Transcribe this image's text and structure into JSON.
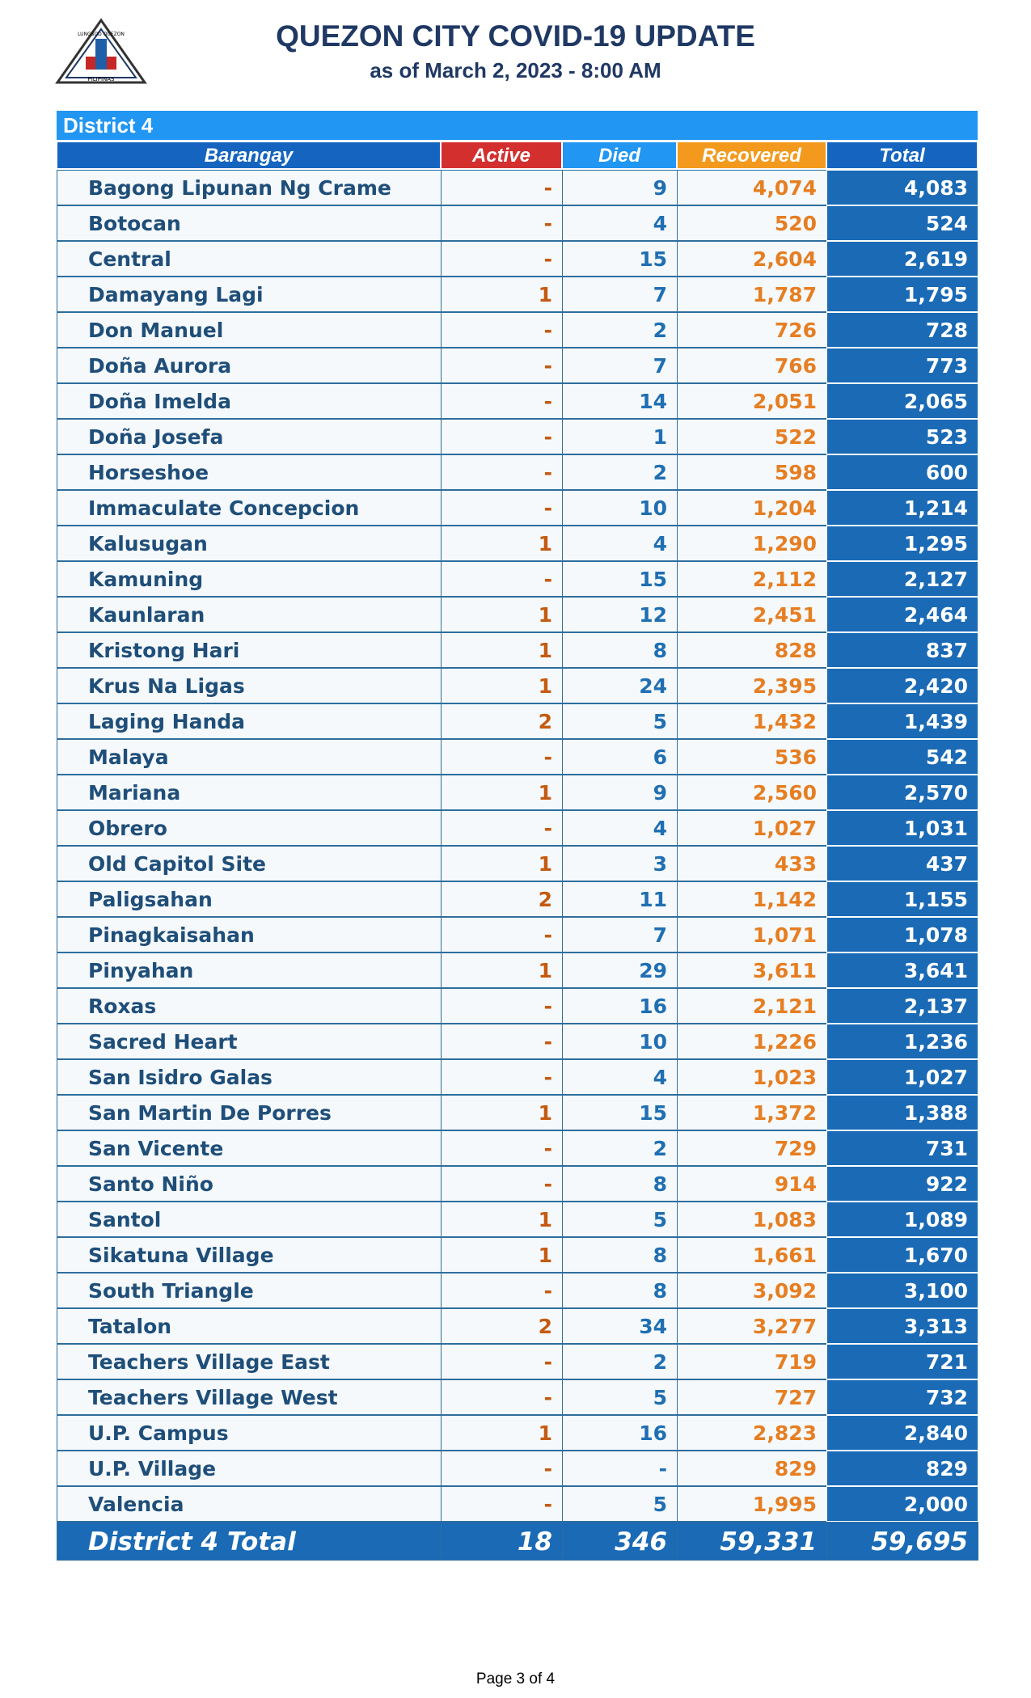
{
  "header": {
    "title": "QUEZON CITY COVID-19 UPDATE",
    "subtitle": "as of March 2, 2023 - 8:00 AM",
    "logo": {
      "top": "LUNGSOD QUEZON",
      "bottom": "PILIPINAS"
    }
  },
  "table": {
    "district": "District 4",
    "columns": [
      "Barangay",
      "Active",
      "Died",
      "Recovered",
      "Total"
    ],
    "rows": [
      [
        "Bagong Lipunan Ng Crame",
        "-",
        "9",
        "4,074",
        "4,083"
      ],
      [
        "Botocan",
        "-",
        "4",
        "520",
        "524"
      ],
      [
        "Central",
        "-",
        "15",
        "2,604",
        "2,619"
      ],
      [
        "Damayang Lagi",
        "1",
        "7",
        "1,787",
        "1,795"
      ],
      [
        "Don Manuel",
        "-",
        "2",
        "726",
        "728"
      ],
      [
        "Doña Aurora",
        "-",
        "7",
        "766",
        "773"
      ],
      [
        "Doña Imelda",
        "-",
        "14",
        "2,051",
        "2,065"
      ],
      [
        "Doña Josefa",
        "-",
        "1",
        "522",
        "523"
      ],
      [
        "Horseshoe",
        "-",
        "2",
        "598",
        "600"
      ],
      [
        "Immaculate Concepcion",
        "-",
        "10",
        "1,204",
        "1,214"
      ],
      [
        "Kalusugan",
        "1",
        "4",
        "1,290",
        "1,295"
      ],
      [
        "Kamuning",
        "-",
        "15",
        "2,112",
        "2,127"
      ],
      [
        "Kaunlaran",
        "1",
        "12",
        "2,451",
        "2,464"
      ],
      [
        "Kristong Hari",
        "1",
        "8",
        "828",
        "837"
      ],
      [
        "Krus Na Ligas",
        "1",
        "24",
        "2,395",
        "2,420"
      ],
      [
        "Laging Handa",
        "2",
        "5",
        "1,432",
        "1,439"
      ],
      [
        "Malaya",
        "-",
        "6",
        "536",
        "542"
      ],
      [
        "Mariana",
        "1",
        "9",
        "2,560",
        "2,570"
      ],
      [
        "Obrero",
        "-",
        "4",
        "1,027",
        "1,031"
      ],
      [
        "Old Capitol Site",
        "1",
        "3",
        "433",
        "437"
      ],
      [
        "Paligsahan",
        "2",
        "11",
        "1,142",
        "1,155"
      ],
      [
        "Pinagkaisahan",
        "-",
        "7",
        "1,071",
        "1,078"
      ],
      [
        "Pinyahan",
        "1",
        "29",
        "3,611",
        "3,641"
      ],
      [
        "Roxas",
        "-",
        "16",
        "2,121",
        "2,137"
      ],
      [
        "Sacred Heart",
        "-",
        "10",
        "1,226",
        "1,236"
      ],
      [
        "San Isidro Galas",
        "-",
        "4",
        "1,023",
        "1,027"
      ],
      [
        "San Martin De Porres",
        "1",
        "15",
        "1,372",
        "1,388"
      ],
      [
        "San Vicente",
        "-",
        "2",
        "729",
        "731"
      ],
      [
        "Santo Niño",
        "-",
        "8",
        "914",
        "922"
      ],
      [
        "Santol",
        "1",
        "5",
        "1,083",
        "1,089"
      ],
      [
        "Sikatuna Village",
        "1",
        "8",
        "1,661",
        "1,670"
      ],
      [
        "South Triangle",
        "-",
        "8",
        "3,092",
        "3,100"
      ],
      [
        "Tatalon",
        "2",
        "34",
        "3,277",
        "3,313"
      ],
      [
        "Teachers Village East",
        "-",
        "2",
        "719",
        "721"
      ],
      [
        "Teachers Village West",
        "-",
        "5",
        "727",
        "732"
      ],
      [
        "U.P. Campus",
        "1",
        "16",
        "2,823",
        "2,840"
      ],
      [
        "U.P. Village",
        "-",
        "-",
        "829",
        "829"
      ],
      [
        "Valencia",
        "-",
        "5",
        "1,995",
        "2,000"
      ]
    ],
    "total": [
      "District 4 Total",
      "18",
      "346",
      "59,331",
      "59,695"
    ]
  },
  "footer": {
    "page": "Page 3 of 4"
  }
}
